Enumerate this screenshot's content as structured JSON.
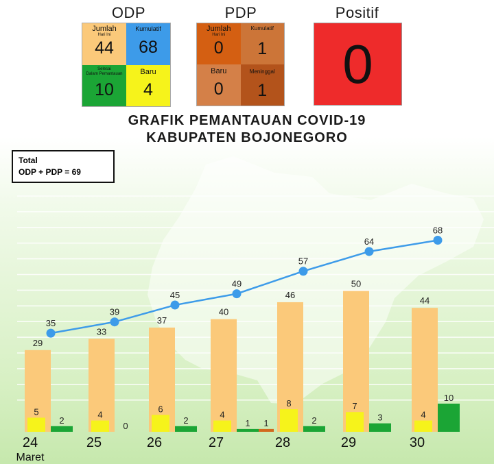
{
  "odp": {
    "title": "ODP",
    "jumlah_label": "Jumlah",
    "jumlah_sub": "Hari Ini",
    "jumlah_value": "44",
    "kumulatif_label": "Kumulatif",
    "kumulatif_value": "68",
    "selesai_label": "Selesai",
    "selesai_sub": "Dalam Pemantauan",
    "selesai_value": "10",
    "baru_label": "Baru",
    "baru_value": "4"
  },
  "pdp": {
    "title": "PDP",
    "jumlah_label": "Jumlah",
    "jumlah_sub": "Hari Ini",
    "jumlah_value": "0",
    "kumulatif_label": "Kumulatif",
    "kumulatif_value": "1",
    "baru_label": "Baru",
    "baru_value": "0",
    "meninggal_label": "Meninggal",
    "meninggal_value": "1"
  },
  "positif": {
    "title": "Positif",
    "value": "0"
  },
  "heading": {
    "line1": "GRAFIK PEMANTAUAN COVID-19",
    "line2": "KABUPATEN BOJONEGORO"
  },
  "total": {
    "line1": "Total",
    "line2": "ODP + PDP = 69"
  },
  "colors": {
    "odp_jumlah": "#fbc97a",
    "odp_kumulatif": "#3d9be9",
    "odp_selesai": "#1ba535",
    "odp_baru": "#f6f31b",
    "pdp_jumlah": "#d45f12",
    "pdp_kumulatif": "#cc7538",
    "pdp_baru": "#d48048",
    "pdp_meninggal": "#b3531b",
    "positif": "#ee2b2b",
    "bar_jumlah": "#fbc97a",
    "bar_baru": "#f6f31b",
    "bar_selesai": "#1ba535",
    "bar_pdp": "#d2691e",
    "line": "#3d9be9"
  },
  "chart_data": {
    "type": "bar",
    "categories": [
      "24",
      "25",
      "26",
      "27",
      "28",
      "29",
      "30"
    ],
    "category_sublabels": [
      "Maret",
      "",
      "",
      "",
      "",
      "",
      ""
    ],
    "series": [
      {
        "values": [
          29,
          33,
          37,
          40,
          46,
          50,
          44
        ],
        "color": "#fbc97a"
      },
      {
        "values": [
          5,
          4,
          6,
          4,
          8,
          7,
          4
        ],
        "color": "#f6f31b"
      },
      {
        "values": [
          2,
          0,
          2,
          1,
          2,
          3,
          10
        ],
        "color": "#1ba535"
      },
      {
        "values": [
          null,
          null,
          null,
          1,
          null,
          null,
          null
        ],
        "color": "#d2691e"
      },
      {
        "type": "line",
        "values": [
          35,
          39,
          45,
          49,
          57,
          64,
          68
        ],
        "color": "#3d9be9"
      }
    ],
    "grid": true
  }
}
